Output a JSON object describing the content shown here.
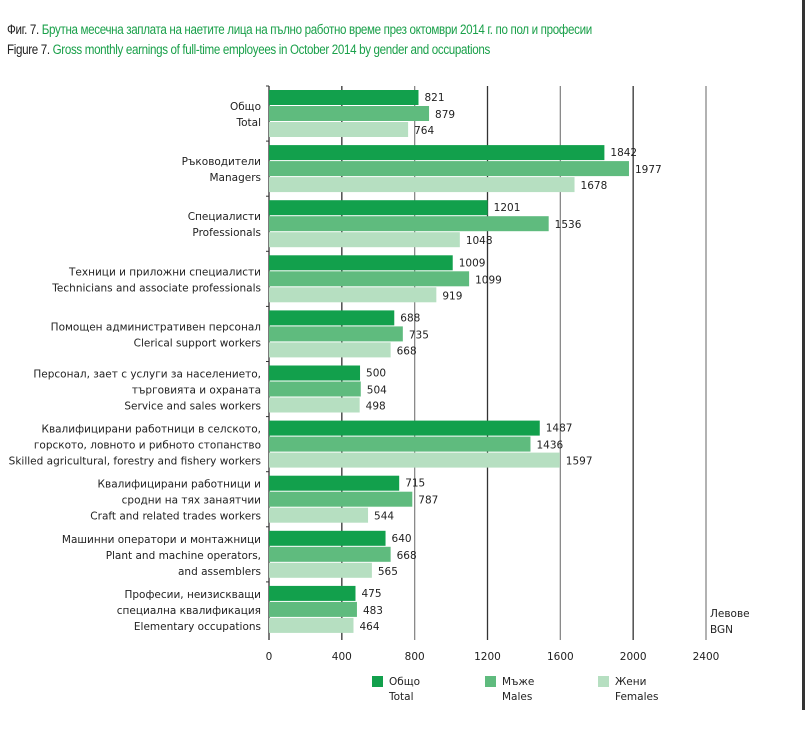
{
  "title": {
    "bg_prefix": "Фиг. 7.",
    "bg_text": "Брутна месечна заплата на наетите лица на пълно работно време през октомври 2014 г. по пол и професии",
    "en_prefix": "Figure 7.",
    "en_text": "Gross monthly earnings of full-time employees in October 2014 by gender and occupations"
  },
  "chart_data": {
    "type": "bar",
    "orientation": "horizontal",
    "categories": [
      [
        "Общо",
        "Total"
      ],
      [
        "Ръководители",
        "Managers"
      ],
      [
        "Специалисти",
        "Professionals"
      ],
      [
        "Техници и приложни специалисти",
        "Technicians and associate professionals"
      ],
      [
        "Помощен административен персонал",
        "Clerical support workers"
      ],
      [
        "Персонал, зает с услуги за населението,",
        "търговията и охраната",
        "Service and sales workers"
      ],
      [
        "Квалифицирани работници в селското,",
        "горското, ловното и рибното стопанство",
        "Skilled agricultural, forestry and fishery workers"
      ],
      [
        "Квалифицирани работници и",
        "сродни на тях занаятчии",
        "Craft and related trades workers"
      ],
      [
        "Машинни оператори и монтажници",
        "Plant and machine operators,",
        "and assemblers"
      ],
      [
        "Професии, неизискващи",
        "специална квалификация",
        "Elementary occupations"
      ]
    ],
    "series": [
      {
        "name": "Общо / Total",
        "name_bg": "Общо",
        "name_en": "Total",
        "color": "#12a04c",
        "values": [
          821,
          1842,
          1201,
          1009,
          688,
          500,
          1487,
          715,
          640,
          475
        ]
      },
      {
        "name": "Мъже / Males",
        "name_bg": "Мъже",
        "name_en": "Males",
        "color": "#5fbb7e",
        "values": [
          879,
          1977,
          1536,
          1099,
          735,
          504,
          1436,
          787,
          668,
          483
        ]
      },
      {
        "name": "Жени / Females",
        "name_bg": "Жени",
        "name_en": "Females",
        "color": "#b6dfc1",
        "values": [
          764,
          1678,
          1048,
          919,
          668,
          498,
          1597,
          544,
          565,
          464
        ]
      }
    ],
    "xlim": [
      0,
      2400
    ],
    "xticks": [
      0,
      400,
      800,
      1200,
      1600,
      2000,
      2400
    ],
    "unit_label": [
      "Левове",
      "BGN"
    ],
    "grid": true,
    "data_labels": true,
    "legend_position": "bottom"
  }
}
